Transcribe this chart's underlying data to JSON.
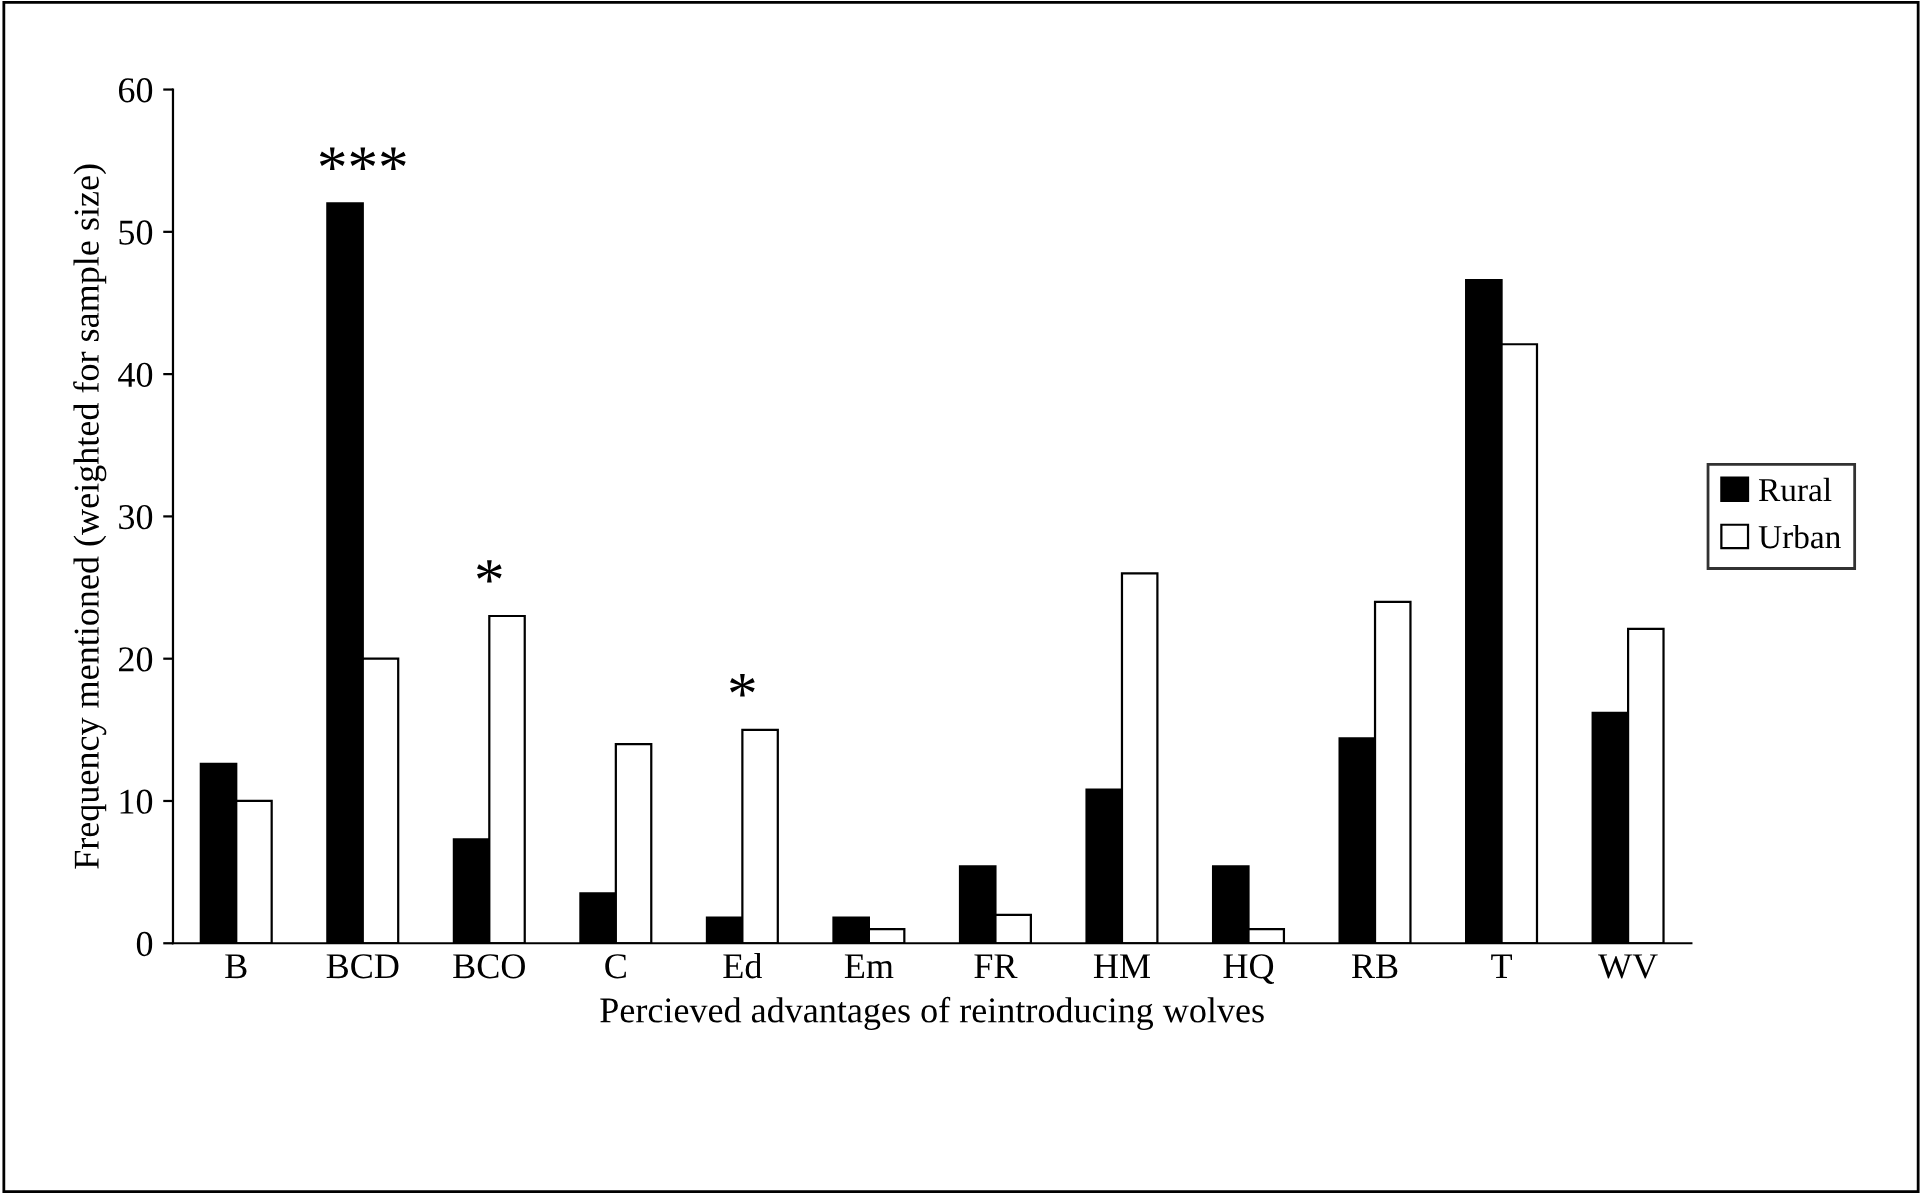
{
  "chart_data": {
    "type": "bar",
    "xlabel": "Percieved advantages of reintroducing wolves",
    "ylabel": "Frequency mentioned (weighted for sample size)",
    "categories": [
      "B",
      "BCD",
      "BCO",
      "C",
      "Ed",
      "Em",
      "FR",
      "HM",
      "HQ",
      "RB",
      "T",
      "WV"
    ],
    "series": [
      {
        "name": "Rural",
        "color": "#000000",
        "values": [
          12.6,
          52.0,
          7.3,
          3.5,
          1.8,
          1.8,
          5.4,
          10.8,
          5.4,
          14.4,
          46.6,
          16.2
        ]
      },
      {
        "name": "Urban",
        "color": "#ffffff",
        "values": [
          10,
          20,
          23,
          14,
          15,
          1,
          2,
          26,
          1,
          24,
          42.1,
          22.1
        ]
      }
    ],
    "ylim": [
      0,
      60
    ],
    "yticks": [
      0,
      10,
      20,
      30,
      40,
      50,
      60
    ],
    "grid": false,
    "legend": "right",
    "annotations": [
      {
        "text": "***",
        "x": "BCD",
        "y": 52.0
      },
      {
        "text": "*",
        "x": "BCO",
        "y": 23
      },
      {
        "text": "*",
        "x": "Ed",
        "y": 15
      }
    ]
  }
}
